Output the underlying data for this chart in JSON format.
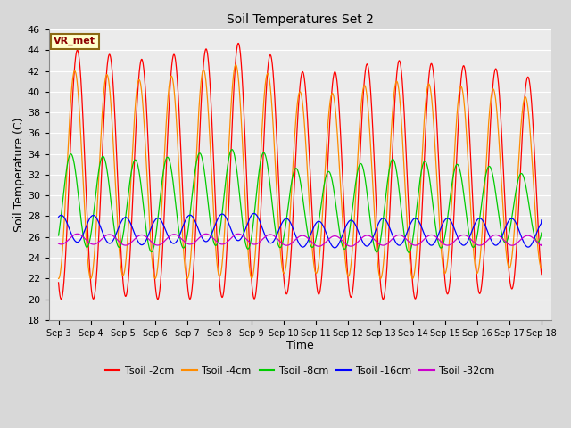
{
  "title": "Soil Temperatures Set 2",
  "xlabel": "Time",
  "ylabel": "Soil Temperature (C)",
  "ylim": [
    18,
    46
  ],
  "yticks": [
    18,
    20,
    22,
    24,
    26,
    28,
    30,
    32,
    34,
    36,
    38,
    40,
    42,
    44,
    46
  ],
  "annotation": "VR_met",
  "x_tick_labels": [
    "Sep 3",
    "Sep 4",
    "Sep 5",
    "Sep 6",
    "Sep 7",
    "Sep 8",
    "Sep 9",
    "Sep 10",
    "Sep 11",
    "Sep 12",
    "Sep 13",
    "Sep 14",
    "Sep 15",
    "Sep 16",
    "Sep 17",
    "Sep 18"
  ],
  "series": [
    {
      "label": "Tsoil -2cm",
      "color": "#FF0000",
      "mean": 32.0,
      "amp": 12.0,
      "phase": 0.0,
      "mean_trend": [
        32.0,
        32.0,
        31.8,
        31.5,
        32.0,
        32.2,
        32.5,
        31.5,
        31.0,
        31.2,
        31.5,
        31.5,
        31.5,
        31.5,
        31.5,
        31.0
      ],
      "amp_trend": [
        12.0,
        12.0,
        11.5,
        11.5,
        12.0,
        12.0,
        12.5,
        11.0,
        10.5,
        11.0,
        11.5,
        11.5,
        11.0,
        11.0,
        10.5,
        10.0
      ]
    },
    {
      "label": "Tsoil -4cm",
      "color": "#FF8C00",
      "mean": 32.0,
      "amp": 10.0,
      "phase": 0.08,
      "mean_trend": [
        32.0,
        32.0,
        31.8,
        31.5,
        32.0,
        32.2,
        32.5,
        31.5,
        31.0,
        31.2,
        31.5,
        31.5,
        31.5,
        31.5,
        31.5,
        31.0
      ],
      "amp_trend": [
        10.0,
        10.0,
        9.5,
        9.5,
        10.0,
        10.0,
        10.5,
        9.0,
        8.5,
        9.0,
        9.5,
        9.5,
        9.0,
        9.0,
        8.5,
        8.0
      ]
    },
    {
      "label": "Tsoil -8cm",
      "color": "#00CC00",
      "mean": 29.5,
      "amp": 4.5,
      "phase": 0.2,
      "mean_trend": [
        29.5,
        29.5,
        29.2,
        29.0,
        29.5,
        29.7,
        29.8,
        29.0,
        28.5,
        28.8,
        29.0,
        29.0,
        29.0,
        29.0,
        29.0,
        28.5
      ],
      "amp_trend": [
        4.5,
        4.5,
        4.2,
        4.5,
        4.5,
        4.5,
        5.0,
        4.0,
        3.5,
        4.0,
        4.5,
        4.5,
        4.0,
        4.0,
        3.5,
        3.0
      ]
    },
    {
      "label": "Tsoil -16cm",
      "color": "#0000FF",
      "mean": 26.8,
      "amp": 1.3,
      "phase": 0.5,
      "mean_trend": [
        26.8,
        26.8,
        26.6,
        26.5,
        26.8,
        26.9,
        27.0,
        26.5,
        26.2,
        26.3,
        26.5,
        26.5,
        26.5,
        26.5,
        26.5,
        26.2
      ],
      "amp_trend": [
        1.3,
        1.3,
        1.3,
        1.3,
        1.3,
        1.3,
        1.3,
        1.3,
        1.3,
        1.3,
        1.3,
        1.3,
        1.3,
        1.3,
        1.3,
        1.3
      ]
    },
    {
      "label": "Tsoil -32cm",
      "color": "#CC00CC",
      "mean": 25.8,
      "amp": 0.5,
      "phase": 1.0,
      "mean_trend": [
        25.8,
        25.8,
        25.7,
        25.7,
        25.8,
        25.8,
        25.8,
        25.7,
        25.6,
        25.6,
        25.7,
        25.7,
        25.7,
        25.7,
        25.7,
        25.6
      ],
      "amp_trend": [
        0.5,
        0.5,
        0.5,
        0.5,
        0.5,
        0.5,
        0.5,
        0.5,
        0.5,
        0.5,
        0.5,
        0.5,
        0.5,
        0.5,
        0.5,
        0.5
      ]
    }
  ],
  "bg_color": "#D8D8D8",
  "plot_bg_color": "#EBEBEB",
  "grid_color": "#FFFFFF",
  "legend_labels": [
    "Tsoil -2cm",
    "Tsoil -4cm",
    "Tsoil -8cm",
    "Tsoil -16cm",
    "Tsoil -32cm"
  ],
  "legend_colors": [
    "#FF0000",
    "#FF8C00",
    "#00CC00",
    "#0000FF",
    "#CC00CC"
  ]
}
